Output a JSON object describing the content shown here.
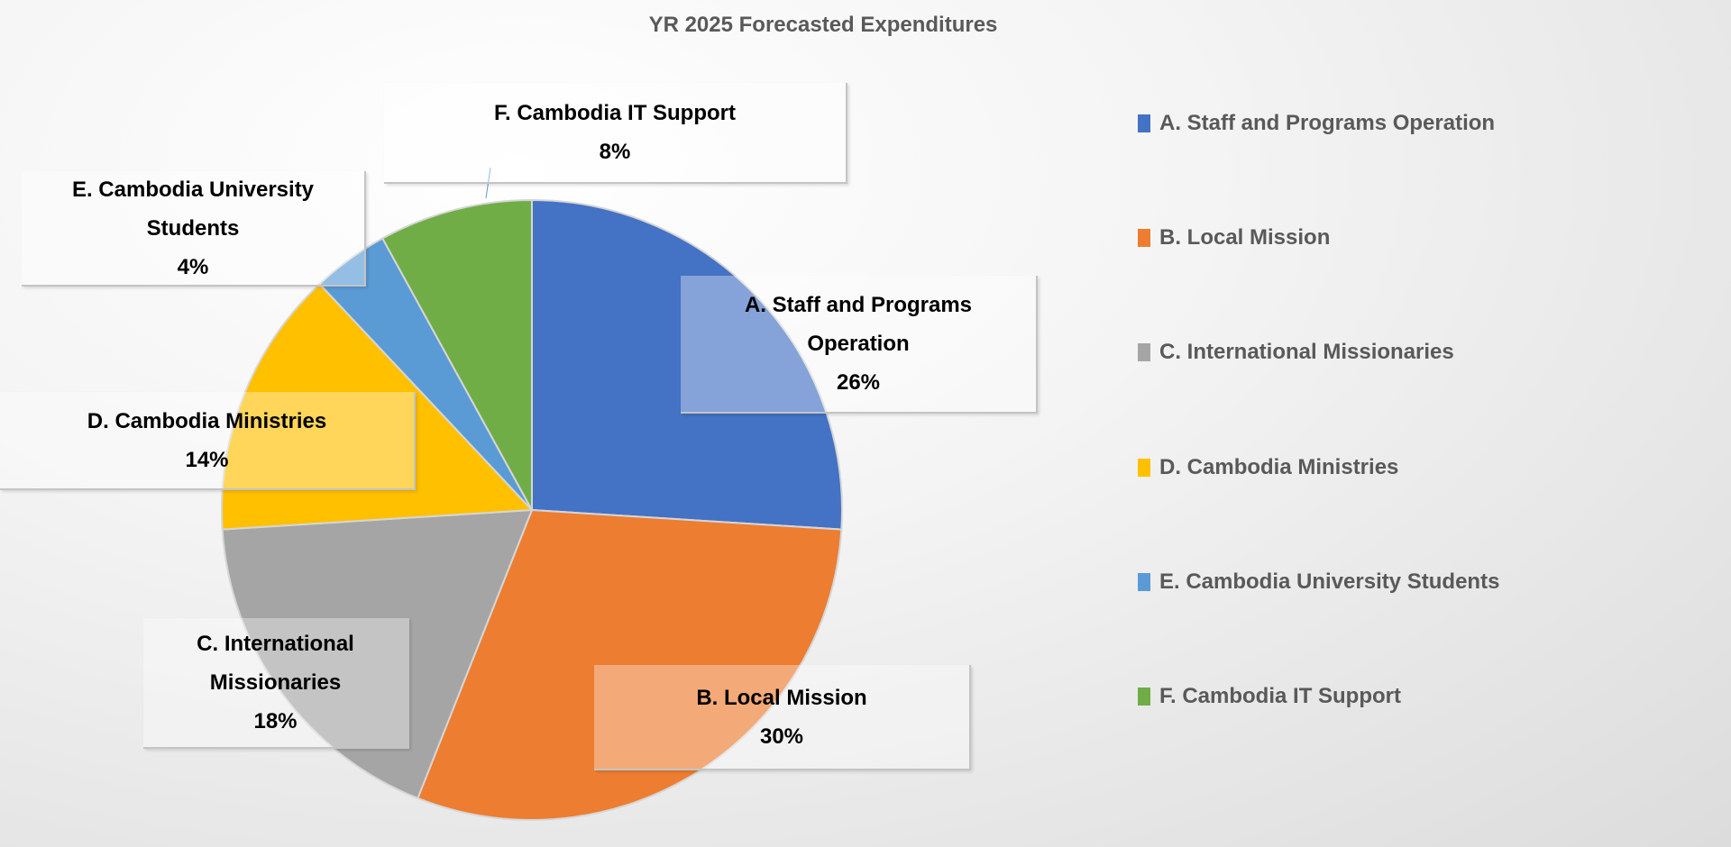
{
  "chart_data": {
    "type": "pie",
    "title": "YR 2025 Forecasted Expenditures",
    "categories": [
      "A. Staff and Programs Operation",
      "B. Local Mission",
      "C. International Missionaries",
      "D. Cambodia Ministries",
      "E. Cambodia University Students",
      "F. Cambodia IT Support"
    ],
    "values": [
      26,
      30,
      18,
      14,
      4,
      8
    ],
    "data_labels": [
      "26%",
      "30%",
      "18%",
      "14%",
      "4%",
      "8%"
    ],
    "colors": [
      "#4472C4",
      "#ED7D31",
      "#A5A5A5",
      "#FFC000",
      "#5B9BD5",
      "#70AD47"
    ],
    "legend": "right"
  }
}
